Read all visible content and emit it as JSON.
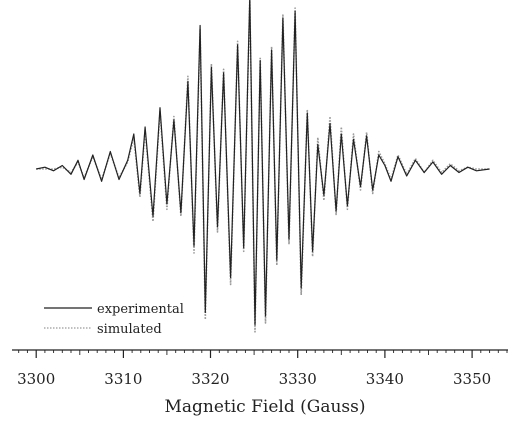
{
  "chart_data": {
    "type": "line",
    "title": "",
    "xlabel": "Magnetic Field (Gauss)",
    "ylabel": "",
    "xlim": [
      3297,
      3354
    ],
    "ylim": [
      -1.0,
      0.92
    ],
    "xticks": [
      3300,
      3310,
      3320,
      3330,
      3340,
      3350
    ],
    "xtick_labels": [
      "3300",
      "3310",
      "3320",
      "3330",
      "3340",
      "3350"
    ],
    "grid": false,
    "legend_position": "bottom-left",
    "series": [
      {
        "name": "experimental",
        "color": "#222222",
        "style": "solid",
        "x": [
          3300.0,
          3301.0,
          3302.0,
          3303.0,
          3304.0,
          3304.8,
          3305.5,
          3306.5,
          3307.5,
          3308.5,
          3309.5,
          3310.5,
          3311.2,
          3311.9,
          3312.5,
          3313.4,
          3314.2,
          3315.0,
          3315.8,
          3316.6,
          3317.4,
          3318.1,
          3318.8,
          3319.4,
          3320.1,
          3320.8,
          3321.5,
          3322.3,
          3323.1,
          3323.8,
          3324.5,
          3325.1,
          3325.7,
          3326.3,
          3327.0,
          3327.6,
          3328.3,
          3329.0,
          3329.7,
          3330.4,
          3331.1,
          3331.7,
          3332.3,
          3333.0,
          3333.7,
          3334.4,
          3335.0,
          3335.7,
          3336.4,
          3337.2,
          3337.9,
          3338.6,
          3339.3,
          3340.0,
          3340.7,
          3341.5,
          3342.5,
          3343.5,
          3344.5,
          3345.5,
          3346.5,
          3347.5,
          3348.5,
          3349.5,
          3350.5,
          3352.0
        ],
        "y": [
          0.0,
          0.01,
          -0.01,
          0.02,
          -0.03,
          0.05,
          -0.06,
          0.08,
          -0.07,
          0.1,
          -0.06,
          0.05,
          0.2,
          -0.14,
          0.24,
          -0.27,
          0.35,
          -0.2,
          0.28,
          -0.25,
          0.5,
          -0.44,
          0.82,
          -0.82,
          0.58,
          -0.33,
          0.55,
          -0.62,
          0.71,
          -0.45,
          0.99,
          -0.89,
          0.62,
          -0.84,
          0.68,
          -0.52,
          0.86,
          -0.4,
          0.9,
          -0.68,
          0.32,
          -0.47,
          0.14,
          -0.15,
          0.26,
          -0.24,
          0.2,
          -0.21,
          0.17,
          -0.1,
          0.19,
          -0.12,
          0.08,
          0.02,
          -0.07,
          0.07,
          -0.04,
          0.05,
          -0.02,
          0.04,
          -0.03,
          0.02,
          -0.02,
          0.01,
          -0.01,
          0.0
        ]
      },
      {
        "name": "simulated",
        "color": "#9a9a9a",
        "style": "dotted",
        "x": [
          3300.0,
          3301.0,
          3302.0,
          3303.0,
          3304.0,
          3304.8,
          3305.5,
          3306.5,
          3307.5,
          3308.5,
          3309.5,
          3310.5,
          3311.2,
          3311.9,
          3312.5,
          3313.4,
          3314.2,
          3315.0,
          3315.8,
          3316.6,
          3317.4,
          3318.1,
          3318.8,
          3319.4,
          3320.1,
          3320.8,
          3321.5,
          3322.3,
          3323.1,
          3323.8,
          3324.5,
          3325.1,
          3325.7,
          3326.3,
          3327.0,
          3327.6,
          3328.3,
          3329.0,
          3329.7,
          3330.4,
          3331.1,
          3331.7,
          3332.3,
          3333.0,
          3333.7,
          3334.4,
          3335.0,
          3335.7,
          3336.4,
          3337.2,
          3337.9,
          3338.6,
          3339.3,
          3340.0,
          3340.7,
          3341.5,
          3342.5,
          3343.5,
          3344.5,
          3345.5,
          3346.5,
          3347.5,
          3348.5,
          3349.5,
          3350.5,
          3352.0
        ],
        "y": [
          0.0,
          0.0,
          0.0,
          0.01,
          -0.02,
          0.04,
          -0.05,
          0.07,
          -0.06,
          0.09,
          -0.05,
          0.04,
          0.18,
          -0.16,
          0.22,
          -0.3,
          0.33,
          -0.23,
          0.3,
          -0.27,
          0.53,
          -0.48,
          0.8,
          -0.86,
          0.6,
          -0.36,
          0.57,
          -0.66,
          0.73,
          -0.47,
          0.97,
          -0.93,
          0.64,
          -0.88,
          0.7,
          -0.55,
          0.88,
          -0.43,
          0.92,
          -0.72,
          0.34,
          -0.5,
          0.18,
          -0.18,
          0.3,
          -0.26,
          0.24,
          -0.23,
          0.2,
          -0.12,
          0.21,
          -0.14,
          0.1,
          0.03,
          -0.06,
          0.08,
          -0.03,
          0.06,
          -0.02,
          0.05,
          -0.02,
          0.03,
          -0.01,
          0.01,
          0.0,
          0.0
        ]
      }
    ]
  }
}
